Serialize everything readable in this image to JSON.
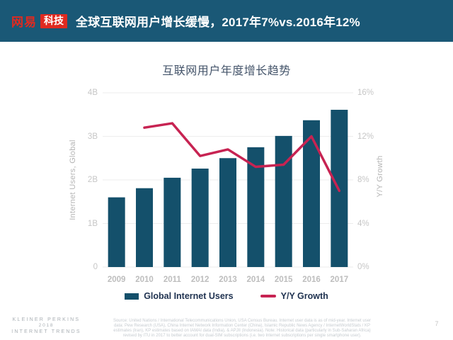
{
  "theme": {
    "header_bg": "#1A5876",
    "bar_color": "#14506B",
    "line_color": "#C72352",
    "logo_red": "#E02A20",
    "title_text": "#FFFFFF",
    "chart_title_text": "#44546A",
    "axis_text": "#C6C6C6",
    "grid_color": "#EDEDED"
  },
  "header": {
    "logo_brand": "网易",
    "logo_badge": "科技",
    "title": "全球互联网用户增长缓慢，2017年7%vs.2016年12%"
  },
  "chart_data": {
    "type": "bar",
    "title": "互联网用户年度增长趋势",
    "categories": [
      "2009",
      "2010",
      "2011",
      "2012",
      "2013",
      "2014",
      "2015",
      "2016",
      "2017"
    ],
    "series": [
      {
        "name": "Global Internet Users",
        "type": "bar",
        "axis": "left",
        "color": "#14506B",
        "values": [
          1.6,
          1.81,
          2.05,
          2.26,
          2.5,
          2.75,
          3.01,
          3.37,
          3.61
        ]
      },
      {
        "name": "Y/Y Growth",
        "type": "line",
        "axis": "right",
        "color": "#C72352",
        "values": [
          null,
          12.8,
          13.2,
          10.2,
          10.8,
          9.2,
          9.4,
          12.0,
          7.0
        ]
      }
    ],
    "left_axis": {
      "label": "Internet Users, Global",
      "ticks": [
        "0",
        "1B",
        "2B",
        "3B",
        "4B"
      ],
      "tick_values": [
        0,
        1,
        2,
        3,
        4
      ],
      "range": [
        0,
        4
      ]
    },
    "right_axis": {
      "label": "Y/Y Growth",
      "ticks": [
        "0%",
        "4%",
        "8%",
        "12%",
        "16%"
      ],
      "tick_values": [
        0,
        4,
        8,
        12,
        16
      ],
      "range": [
        0,
        16
      ]
    },
    "legend": [
      "Global Internet Users",
      "Y/Y Growth"
    ],
    "legend_position": "bottom",
    "grid": true
  },
  "footer": {
    "brand_lines": [
      "KLEINER PERKINS",
      "2018",
      "INTERNET TRENDS"
    ],
    "source_lines": [
      "Source: United Nations / International Telecommunications Union, USA Census Bureau. Internet user data is as of mid-year. Internet user",
      "data: Pew Research (USA), China Internet Network Information Center (China), Islamic Republic News Agency / InternetWorldStats / KP",
      "estimates (Iran), KP estimates based on IAMAI data (India), & APJII (Indonesia).  Note: Historical data (particularly in Sub-Saharan Africa)",
      "revised by ITU in 2017 to better account for dual-SIM subscriptions (i.e. two Internet subscriptions per single smartphone user)."
    ],
    "page_number": "7"
  }
}
